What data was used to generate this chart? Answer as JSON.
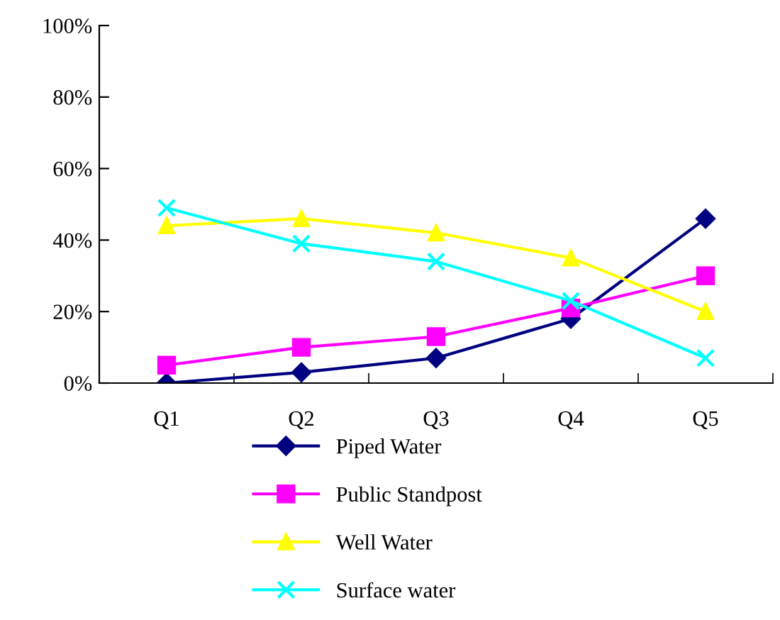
{
  "chart_data": {
    "type": "line",
    "categories": [
      "Q1",
      "Q2",
      "Q3",
      "Q4",
      "Q5"
    ],
    "series": [
      {
        "name": "Piped Water",
        "color": "#000080",
        "marker": "diamond",
        "values": [
          0,
          3,
          7,
          18,
          46
        ]
      },
      {
        "name": "Public Standpost",
        "color": "#ff00ff",
        "marker": "square",
        "values": [
          5,
          10,
          13,
          21,
          30
        ]
      },
      {
        "name": "Well Water",
        "color": "#ffff00",
        "marker": "triangle",
        "values": [
          44,
          46,
          42,
          35,
          20
        ]
      },
      {
        "name": "Surface water",
        "color": "#00ffff",
        "marker": "cross",
        "values": [
          49,
          39,
          34,
          23,
          7
        ]
      }
    ],
    "ylim": [
      0,
      100
    ],
    "yticks": [
      {
        "value": 0,
        "label": "0%"
      },
      {
        "value": 20,
        "label": "20%"
      },
      {
        "value": 40,
        "label": "40%"
      },
      {
        "value": 60,
        "label": "60%"
      },
      {
        "value": 80,
        "label": "80%"
      },
      {
        "value": 100,
        "label": "100%"
      }
    ],
    "grid": false,
    "legend": "bottom",
    "line_style": "solid"
  }
}
